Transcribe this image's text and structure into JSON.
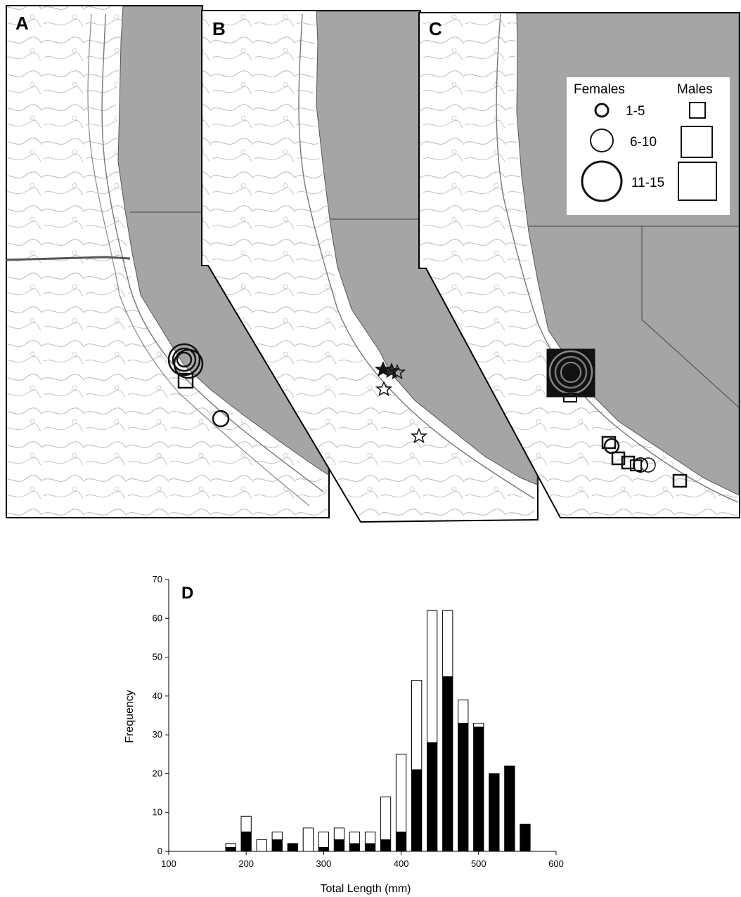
{
  "figure": {
    "panels": {
      "a": {
        "label": "A"
      },
      "b": {
        "label": "B"
      },
      "c": {
        "label": "C"
      }
    },
    "legend": {
      "females_heading": "Females",
      "males_heading": "Males",
      "ranges": [
        "1-5",
        "6-10",
        "11-15"
      ]
    },
    "colors": {
      "land": "#a5a5a5",
      "bathymetry": "#8a8a8a",
      "marker": "#111111",
      "border": "#000000"
    }
  },
  "chart_data": {
    "type": "bar",
    "panel_label": "D",
    "xlabel": "Total Length (mm)",
    "ylabel": "Frequency",
    "xlim": [
      100,
      600
    ],
    "ylim": [
      0,
      70
    ],
    "xticks": [
      100,
      200,
      300,
      400,
      500,
      600
    ],
    "yticks": [
      0,
      10,
      20,
      30,
      40,
      50,
      60,
      70
    ],
    "stacked": true,
    "x": [
      180,
      200,
      220,
      240,
      260,
      280,
      300,
      320,
      340,
      360,
      380,
      400,
      420,
      440,
      460,
      480,
      500,
      520,
      540,
      560
    ],
    "series": [
      {
        "color": "#000000",
        "values": [
          1,
          5,
          0,
          3,
          2,
          0,
          1,
          3,
          2,
          2,
          3,
          5,
          21,
          28,
          45,
          33,
          32,
          20,
          22,
          7
        ]
      },
      {
        "color": "#ffffff",
        "values": [
          1,
          4,
          3,
          2,
          0,
          6,
          4,
          3,
          3,
          3,
          11,
          20,
          23,
          34,
          17,
          6,
          1,
          0,
          0,
          0
        ]
      }
    ]
  }
}
